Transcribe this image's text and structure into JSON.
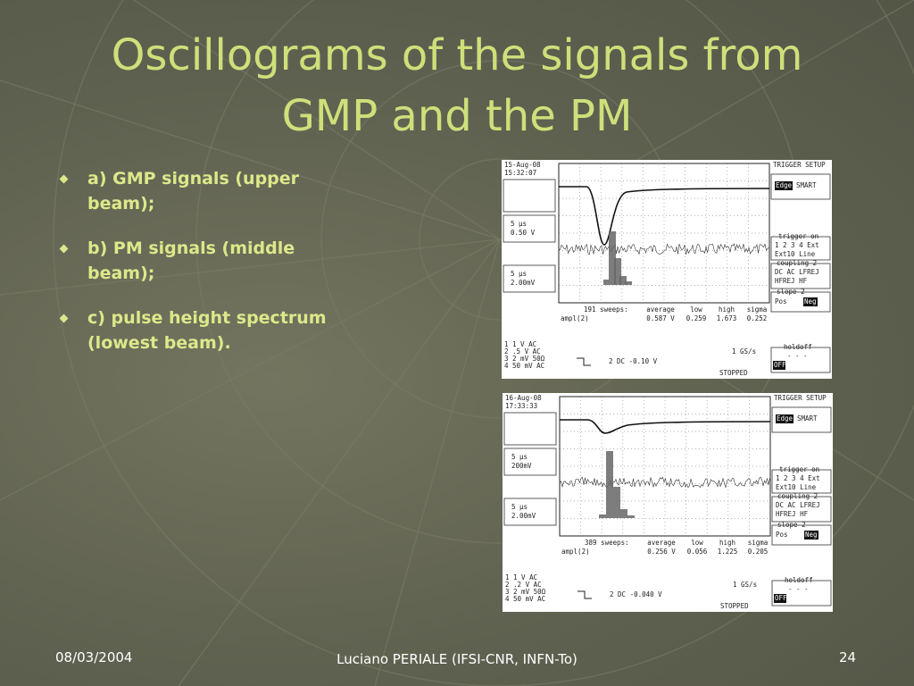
{
  "title": [
    "Oscillograms of the signals from",
    "GMP and the PM"
  ],
  "bullets": [
    "a) GMP signals (upper beam);",
    "b) PM signals (middle beam);",
    "c) pulse height spectrum (lowest beam)."
  ],
  "footer": {
    "date": "08/03/2004",
    "author": "Luciano PERIALE (IFSI-CNR, INFN-To)",
    "page": "24"
  },
  "scopes": [
    {
      "date": "15-Aug-08",
      "time": "15:32:07",
      "beams": [
        {
          "time": "5 µs",
          "volts": "0.50 V"
        },
        {
          "time": "5 µs",
          "volts": "2.00mV"
        }
      ],
      "sweeps": "191 sweeps:",
      "measure_labels": [
        "average",
        "low",
        "high",
        "sigma"
      ],
      "measure_name": "ampl(2)",
      "measure_values": [
        "0.587 V",
        "0.259",
        "1.673",
        "0.252"
      ],
      "trigger_setup": "TRIGGER SETUP",
      "trigger_modes": [
        "Edge",
        "SMART"
      ],
      "trigger_on": "trigger on",
      "sources": "1 2 3 4 Ext",
      "sources2": "Ext10 Line",
      "coupling": "coupling 2",
      "coupling_opts": "DC AC LFREJ",
      "coupling_opts2": "HFREJ HF",
      "slope": "slope 2",
      "slope_opts": [
        "Pos",
        "Neg"
      ],
      "holdoff": "holdoff",
      "holdoff_val": "- - -",
      "holdoff_opts": "OFF Time Evts",
      "channels": [
        "1   1  V  AC",
        "2  .5  V  AC",
        "3   2  mV  50Ω",
        "4  50  mV  AC"
      ],
      "offset": "2   DC -0.10 V",
      "rate": "1 GS/s",
      "status": "STOPPED"
    },
    {
      "date": "16-Aug-08",
      "time": "17:33:33",
      "beams": [
        {
          "time": "5 µs",
          "volts": "200mV"
        },
        {
          "time": "5 µs",
          "volts": "2.00mV"
        }
      ],
      "sweeps": "389 sweeps:",
      "measure_labels": [
        "average",
        "low",
        "high",
        "sigma"
      ],
      "measure_name": "ampl(2)",
      "measure_values": [
        "0.256 V",
        "0.056",
        "1.225",
        "0.205"
      ],
      "trigger_setup": "TRIGGER SETUP",
      "trigger_modes": [
        "Edge",
        "SMART"
      ],
      "trigger_on": "trigger on",
      "sources": "1 2 3 4 Ext",
      "sources2": "Ext10 Line",
      "coupling": "coupling 2",
      "coupling_opts": "DC AC LFREJ",
      "coupling_opts2": "HFREJ HF",
      "slope": "slope 2",
      "slope_opts": [
        "Pos",
        "Neg"
      ],
      "holdoff": "holdoff",
      "holdoff_val": "- - -",
      "holdoff_opts": "OFF Time Evts",
      "channels": [
        "1   1  V  AC",
        "2  .2  V  AC",
        "3   2  mV  50Ω",
        "4  50  mV  AC"
      ],
      "offset": "2   DC -0.040 V",
      "rate": "1 GS/s",
      "status": "STOPPED"
    }
  ]
}
